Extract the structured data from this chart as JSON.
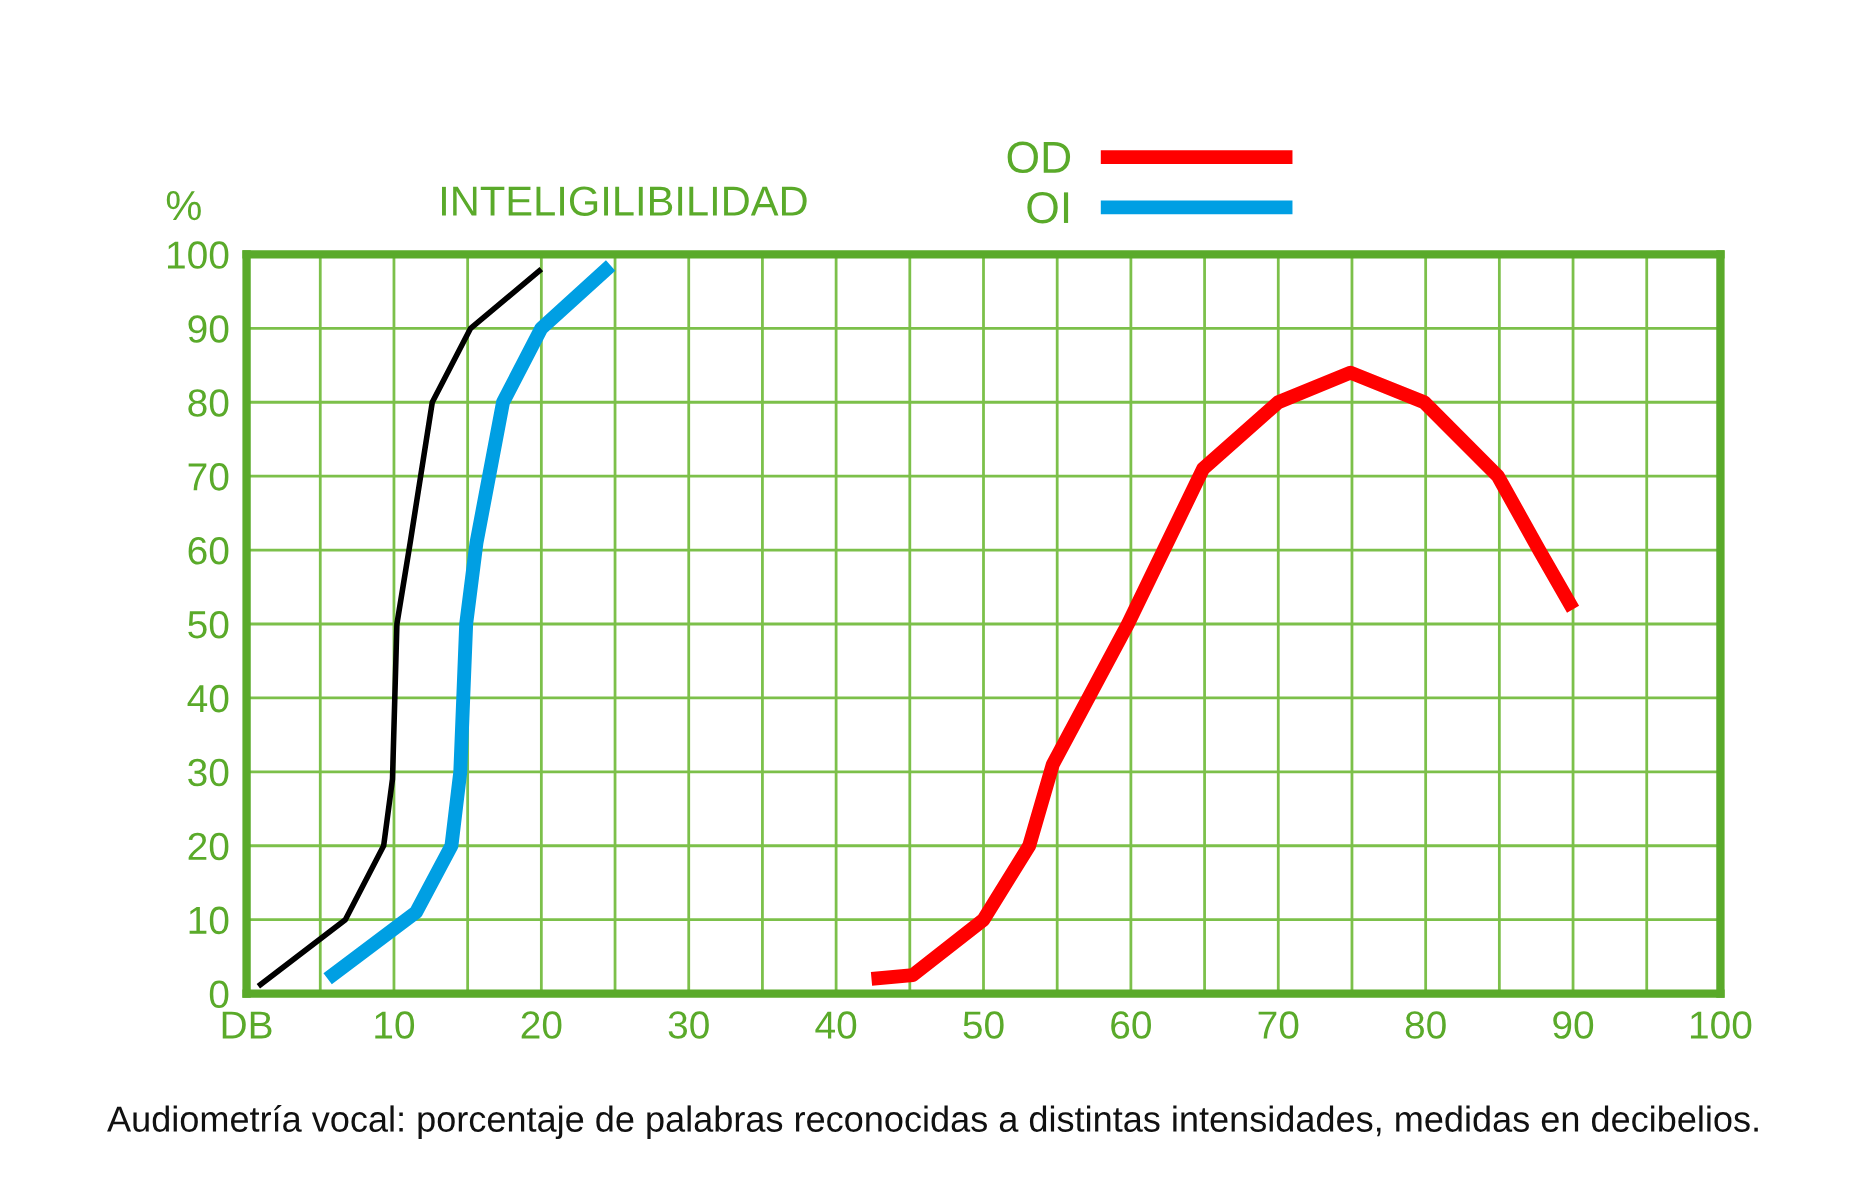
{
  "chart_data": {
    "type": "line",
    "title": "INTELIGILIBILIDAD",
    "ylabel": "%",
    "annotations": [
      "Audiometría vocal: porcentaje de palabras reconocidas a distintas intensidades, medidas en decibelios."
    ],
    "series": [
      {
        "name": "OD",
        "color": "#ff0000",
        "x": [
          42.4,
          45.2,
          50,
          53.1,
          54.7,
          59.8,
          64.9,
          70,
          74.9,
          79.9,
          84.9,
          87.7,
          90
        ],
        "values": [
          2,
          2.5,
          10,
          20,
          31,
          50,
          71,
          80,
          84,
          80,
          70,
          60,
          52
        ]
      },
      {
        "name": "OI",
        "color": "#009fe3",
        "x": [
          5.5,
          11.5,
          13.9,
          14.5,
          14.9,
          15.6,
          17.4,
          20,
          24.7
        ],
        "values": [
          2,
          11,
          20,
          30,
          50,
          61,
          80,
          90,
          98.5
        ]
      },
      {
        "color": "#000000",
        "x": [
          0.8,
          6.7,
          9.3,
          9.9,
          10.2,
          11.1,
          12.6,
          15.2,
          20
        ],
        "values": [
          1,
          10,
          20,
          29,
          50,
          61,
          80,
          90,
          98
        ]
      }
    ],
    "xlim": [
      0,
      100
    ],
    "ylim": [
      0,
      100
    ],
    "xticks": [
      {
        "value": 0,
        "label": "DB"
      },
      {
        "value": 5,
        "label": null
      },
      10,
      {
        "value": 15,
        "label": null
      },
      20,
      {
        "value": 25,
        "label": null
      },
      30,
      {
        "value": 35,
        "label": null
      },
      40,
      {
        "value": 45,
        "label": null
      },
      50,
      {
        "value": 55,
        "label": null
      },
      60,
      {
        "value": 65,
        "label": null
      },
      70,
      {
        "value": 75,
        "label": null
      },
      80,
      {
        "value": 85,
        "label": null
      },
      90,
      {
        "value": 95,
        "label": null
      },
      100
    ],
    "yticks": [
      0,
      10,
      20,
      30,
      40,
      50,
      60,
      70,
      80,
      90,
      100
    ],
    "grid": true,
    "legend": "top right",
    "marker": "none",
    "line_style": "solid"
  }
}
